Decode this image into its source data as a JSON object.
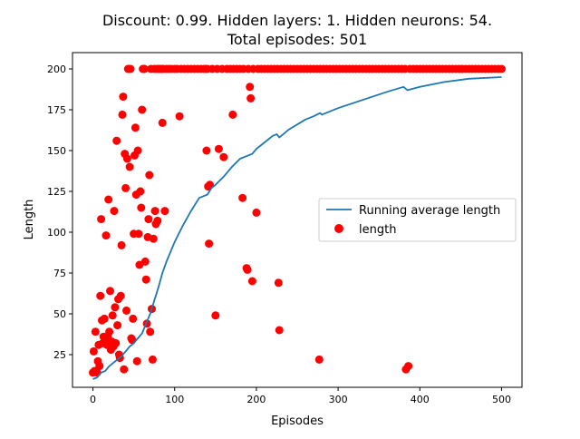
{
  "chart_data": {
    "type": "scatter",
    "title": "Discount: 0.99. Hidden layers: 1. Hidden neurons: 54.",
    "subtitle": "Total episodes: 501",
    "xlabel": "Episodes",
    "ylabel": "Length",
    "xlim": [
      -25,
      525
    ],
    "ylim": [
      5,
      210
    ],
    "x_ticks": [
      0,
      100,
      200,
      300,
      400,
      500
    ],
    "y_ticks": [
      25,
      50,
      75,
      100,
      125,
      150,
      175,
      200
    ],
    "legend_position": "center-right",
    "grid": false,
    "series": [
      {
        "name": "Running average length",
        "kind": "line",
        "color": "#1f77b4",
        "x": [
          0,
          5,
          10,
          15,
          20,
          25,
          30,
          35,
          40,
          45,
          50,
          55,
          60,
          65,
          70,
          75,
          80,
          85,
          90,
          95,
          100,
          110,
          120,
          130,
          140,
          145,
          150,
          160,
          170,
          180,
          190,
          195,
          200,
          210,
          220,
          225,
          228,
          240,
          260,
          270,
          278,
          280,
          300,
          330,
          360,
          380,
          385,
          400,
          430,
          460,
          500
        ],
        "values": [
          10,
          11,
          14,
          15,
          18,
          20,
          22,
          24,
          27,
          30,
          32,
          35,
          38,
          44,
          50,
          58,
          66,
          75,
          82,
          88,
          94,
          104,
          113,
          121,
          123,
          127,
          129,
          134,
          140,
          145,
          147,
          148,
          151,
          155,
          159,
          160,
          158,
          163,
          169,
          171,
          173,
          172,
          176,
          181,
          186,
          189,
          187,
          189,
          192,
          194,
          195
        ]
      },
      {
        "name": "length",
        "kind": "scatter",
        "color": "#ff0000",
        "points": [
          [
            0,
            14
          ],
          [
            1,
            27
          ],
          [
            2,
            15
          ],
          [
            3,
            39
          ],
          [
            4,
            15
          ],
          [
            5,
            14
          ],
          [
            6,
            21
          ],
          [
            7,
            31
          ],
          [
            8,
            18
          ],
          [
            9,
            61
          ],
          [
            10,
            108
          ],
          [
            11,
            46
          ],
          [
            12,
            32
          ],
          [
            13,
            36
          ],
          [
            14,
            47
          ],
          [
            15,
            34
          ],
          [
            16,
            98
          ],
          [
            17,
            31
          ],
          [
            18,
            36
          ],
          [
            19,
            120
          ],
          [
            20,
            39
          ],
          [
            21,
            64
          ],
          [
            22,
            28
          ],
          [
            23,
            33
          ],
          [
            24,
            49
          ],
          [
            25,
            30
          ],
          [
            26,
            113
          ],
          [
            27,
            54
          ],
          [
            28,
            32
          ],
          [
            29,
            156
          ],
          [
            30,
            43
          ],
          [
            31,
            59
          ],
          [
            32,
            25
          ],
          [
            33,
            23
          ],
          [
            34,
            61
          ],
          [
            35,
            92
          ],
          [
            36,
            172
          ],
          [
            37,
            183
          ],
          [
            38,
            16
          ],
          [
            39,
            148
          ],
          [
            40,
            127
          ],
          [
            41,
            52
          ],
          [
            42,
            145
          ],
          [
            43,
            200
          ],
          [
            44,
            200
          ],
          [
            45,
            140
          ],
          [
            46,
            200
          ],
          [
            47,
            35
          ],
          [
            48,
            34
          ],
          [
            49,
            47
          ],
          [
            50,
            99
          ],
          [
            51,
            147
          ],
          [
            52,
            164
          ],
          [
            53,
            123
          ],
          [
            54,
            21
          ],
          [
            55,
            150
          ],
          [
            56,
            99
          ],
          [
            57,
            80
          ],
          [
            58,
            125
          ],
          [
            59,
            115
          ],
          [
            60,
            175
          ],
          [
            61,
            200
          ],
          [
            62,
            200
          ],
          [
            63,
            200
          ],
          [
            64,
            82
          ],
          [
            65,
            71
          ],
          [
            66,
            44
          ],
          [
            67,
            97
          ],
          [
            68,
            108
          ],
          [
            69,
            135
          ],
          [
            70,
            39
          ],
          [
            71,
            200
          ],
          [
            72,
            53
          ],
          [
            73,
            22
          ],
          [
            74,
            96
          ],
          [
            75,
            200
          ],
          [
            76,
            113
          ],
          [
            77,
            105
          ],
          [
            78,
            200
          ],
          [
            79,
            107
          ],
          [
            80,
            200
          ],
          [
            82,
            200
          ],
          [
            84,
            200
          ],
          [
            85,
            167
          ],
          [
            86,
            200
          ],
          [
            88,
            113
          ],
          [
            90,
            200
          ],
          [
            93,
            200
          ],
          [
            96,
            200
          ],
          [
            100,
            200
          ],
          [
            103,
            200
          ],
          [
            106,
            171
          ],
          [
            108,
            200
          ],
          [
            112,
            200
          ],
          [
            116,
            200
          ],
          [
            120,
            200
          ],
          [
            124,
            200
          ],
          [
            128,
            200
          ],
          [
            132,
            200
          ],
          [
            136,
            200
          ],
          [
            138,
            200
          ],
          [
            139,
            150
          ],
          [
            140,
            200
          ],
          [
            141,
            128
          ],
          [
            142,
            93
          ],
          [
            143,
            129
          ],
          [
            146,
            200
          ],
          [
            150,
            49
          ],
          [
            152,
            200
          ],
          [
            154,
            151
          ],
          [
            158,
            200
          ],
          [
            160,
            146
          ],
          [
            164,
            200
          ],
          [
            168,
            200
          ],
          [
            171,
            172
          ],
          [
            172,
            200
          ],
          [
            176,
            200
          ],
          [
            180,
            200
          ],
          [
            183,
            121
          ],
          [
            184,
            200
          ],
          [
            188,
            78
          ],
          [
            189,
            77
          ],
          [
            190,
            200
          ],
          [
            192,
            189
          ],
          [
            193,
            182
          ],
          [
            195,
            70
          ],
          [
            196,
            200
          ],
          [
            200,
            112
          ],
          [
            202,
            200
          ],
          [
            206,
            200
          ],
          [
            210,
            200
          ],
          [
            214,
            200
          ],
          [
            218,
            200
          ],
          [
            222,
            200
          ],
          [
            226,
            200
          ],
          [
            227,
            69
          ],
          [
            228,
            40
          ],
          [
            230,
            200
          ],
          [
            234,
            200
          ],
          [
            238,
            200
          ],
          [
            242,
            200
          ],
          [
            246,
            200
          ],
          [
            250,
            200
          ],
          [
            254,
            200
          ],
          [
            258,
            200
          ],
          [
            262,
            200
          ],
          [
            266,
            200
          ],
          [
            270,
            200
          ],
          [
            274,
            200
          ],
          [
            277,
            22
          ],
          [
            278,
            200
          ],
          [
            282,
            200
          ],
          [
            286,
            200
          ],
          [
            290,
            200
          ],
          [
            294,
            200
          ],
          [
            298,
            200
          ],
          [
            302,
            200
          ],
          [
            306,
            200
          ],
          [
            310,
            200
          ],
          [
            314,
            200
          ],
          [
            318,
            200
          ],
          [
            322,
            200
          ],
          [
            326,
            200
          ],
          [
            330,
            200
          ],
          [
            334,
            200
          ],
          [
            338,
            200
          ],
          [
            342,
            200
          ],
          [
            346,
            200
          ],
          [
            350,
            200
          ],
          [
            354,
            200
          ],
          [
            358,
            200
          ],
          [
            362,
            200
          ],
          [
            366,
            200
          ],
          [
            370,
            200
          ],
          [
            374,
            200
          ],
          [
            378,
            200
          ],
          [
            382,
            200
          ],
          [
            383,
            16
          ],
          [
            386,
            18
          ],
          [
            388,
            200
          ],
          [
            392,
            200
          ],
          [
            396,
            200
          ],
          [
            400,
            200
          ],
          [
            404,
            200
          ],
          [
            408,
            200
          ],
          [
            412,
            200
          ],
          [
            416,
            200
          ],
          [
            420,
            200
          ],
          [
            424,
            200
          ],
          [
            428,
            200
          ],
          [
            432,
            200
          ],
          [
            436,
            200
          ],
          [
            440,
            200
          ],
          [
            444,
            200
          ],
          [
            448,
            200
          ],
          [
            452,
            200
          ],
          [
            456,
            200
          ],
          [
            460,
            200
          ],
          [
            464,
            200
          ],
          [
            468,
            200
          ],
          [
            472,
            200
          ],
          [
            476,
            200
          ],
          [
            480,
            200
          ],
          [
            484,
            200
          ],
          [
            488,
            200
          ],
          [
            492,
            200
          ],
          [
            496,
            200
          ],
          [
            500,
            200
          ]
        ]
      }
    ]
  }
}
